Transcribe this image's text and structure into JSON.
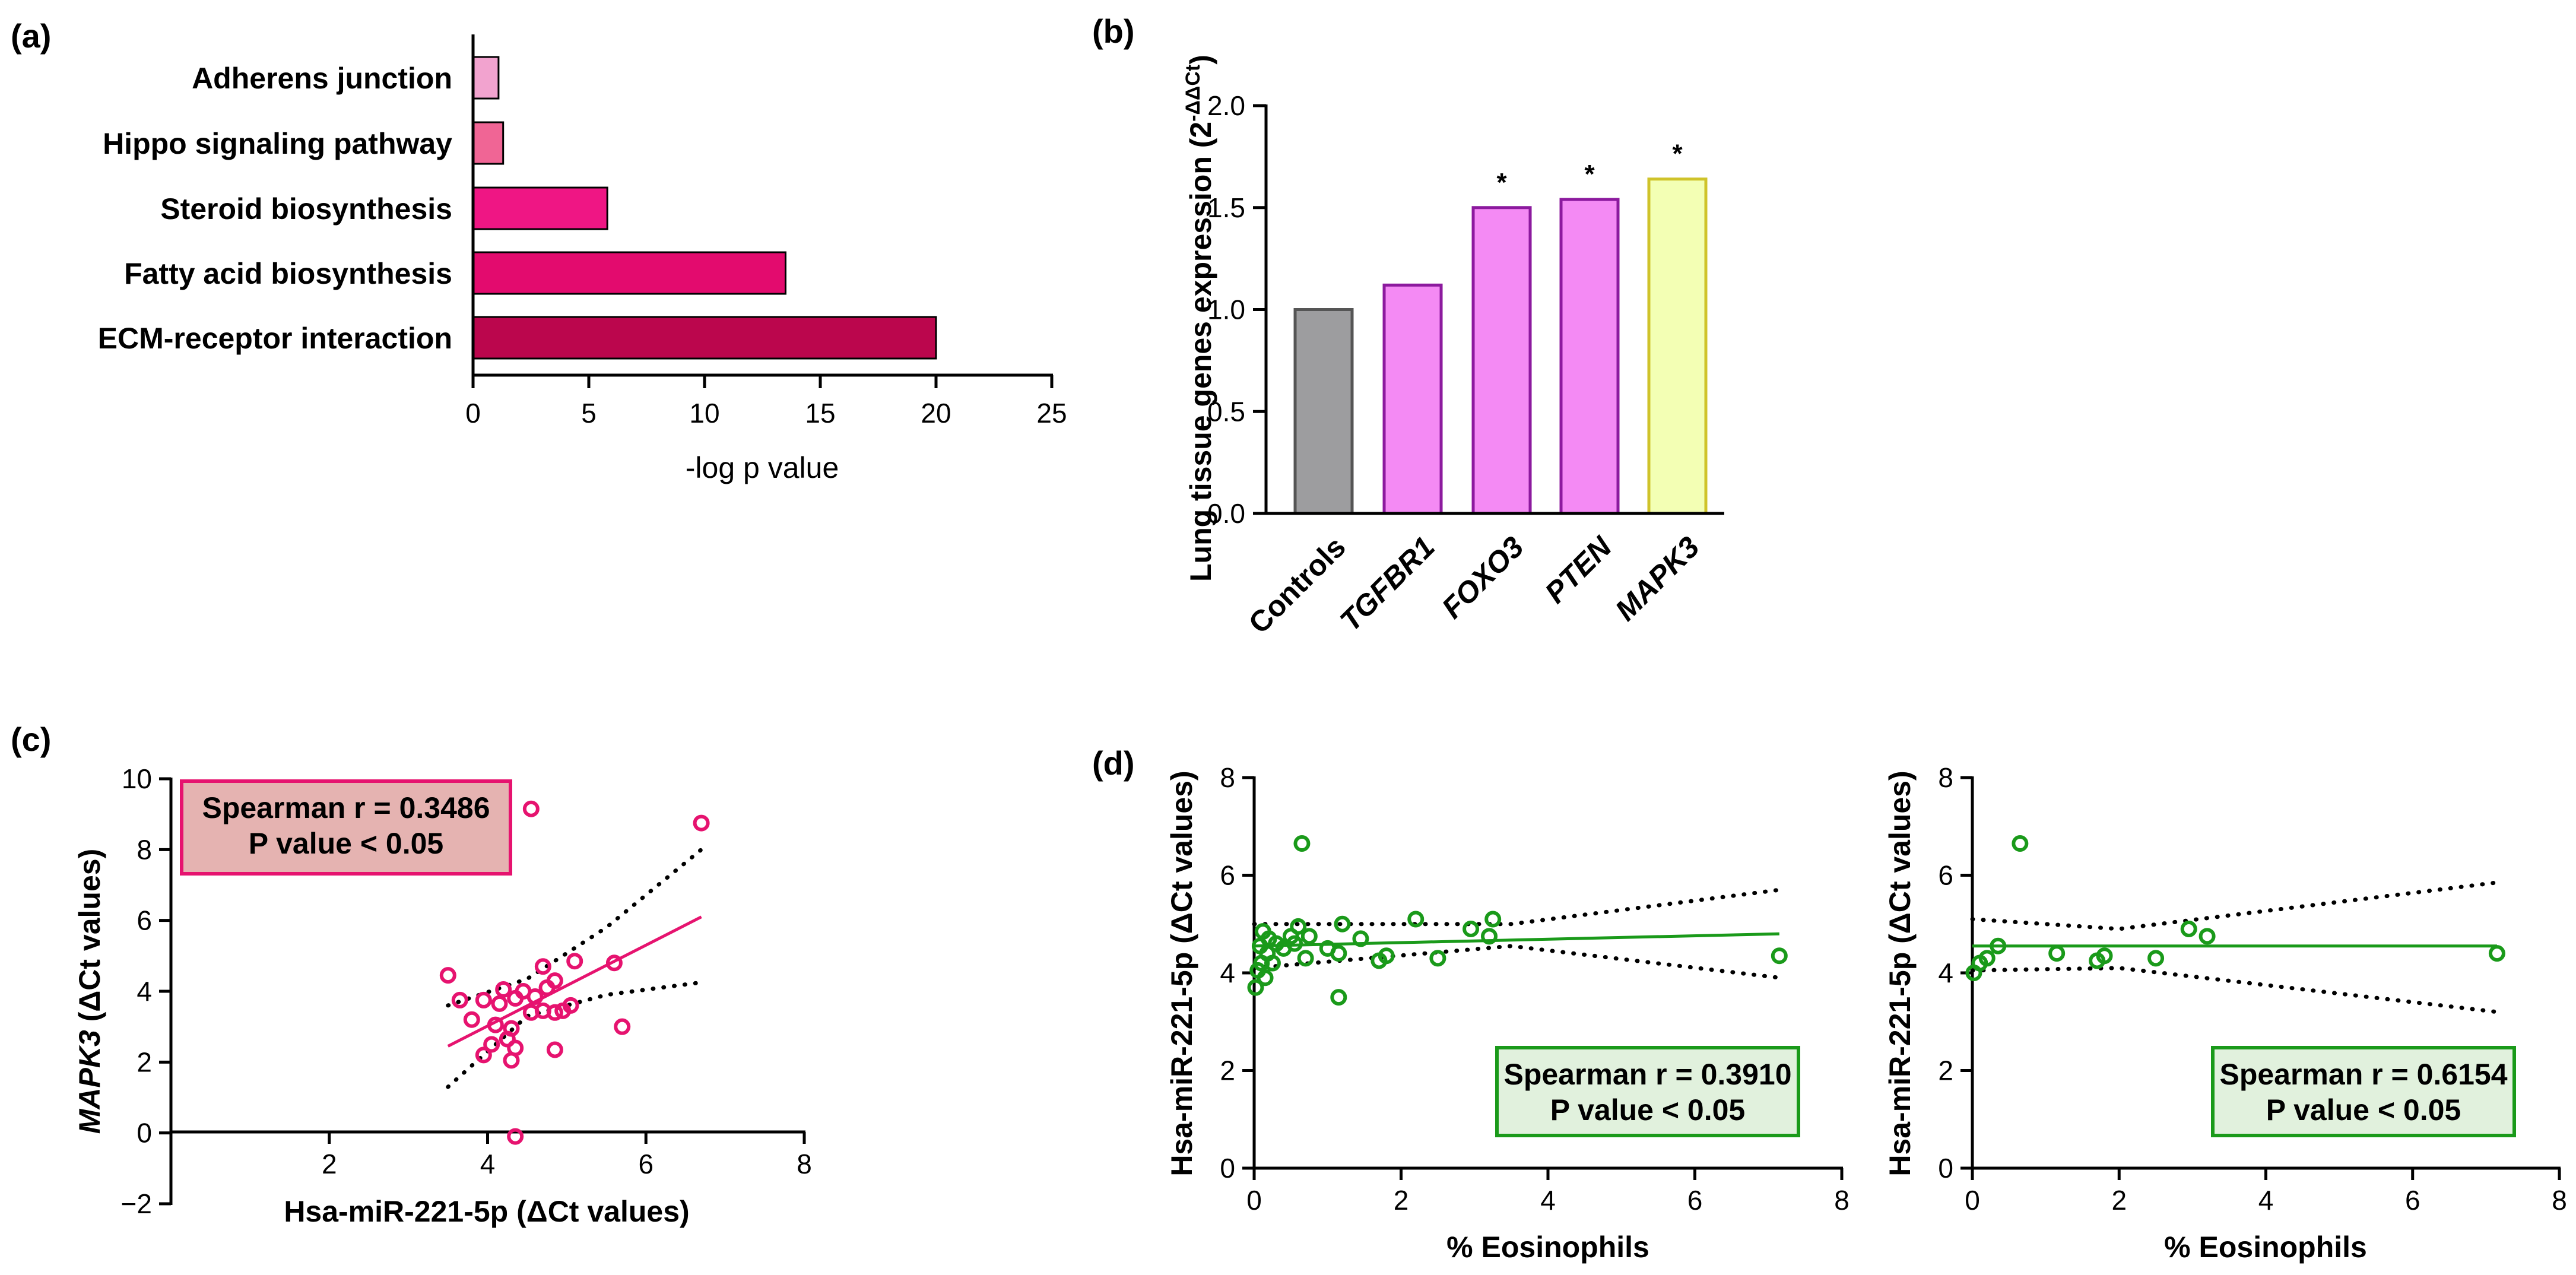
{
  "chart_data": [
    {
      "panel": "(a)",
      "type": "bar",
      "orientation": "horizontal",
      "categories": [
        "Adherens junction",
        "Hippo signaling pathway",
        "Steroid biosynthesis",
        "Fatty acid biosynthesis",
        "ECM-receptor interaction"
      ],
      "values": [
        1.1,
        1.3,
        5.8,
        13.5,
        20.0
      ],
      "colors": [
        "#f2a3cf",
        "#f06595",
        "#ef1684",
        "#e30b6e",
        "#bb064d"
      ],
      "xlabel": "-log p value",
      "xlim": [
        0,
        25
      ],
      "xticks": [
        0,
        5,
        10,
        15,
        20,
        25
      ]
    },
    {
      "panel": "(b)",
      "type": "bar",
      "categories": [
        "Controls",
        "TGFBR1",
        "FOXO3",
        "PTEN",
        "MAPK3"
      ],
      "values": [
        1.0,
        1.12,
        1.5,
        1.54,
        1.64
      ],
      "significance": [
        "",
        "",
        "*",
        "*",
        "*"
      ],
      "colors": [
        "#9d9d9f",
        "#f48af4",
        "#f48af4",
        "#f48af4",
        "#f3ffb4"
      ],
      "edge_colors": [
        "#555555",
        "#8c1a9e",
        "#8c1a9e",
        "#8c1a9e",
        "#cfc32a"
      ],
      "ylabel": "Lung tissue genes expression (2",
      "ylabel_sup": "-ΔΔCt",
      "ylabel_end": ")",
      "ylim": [
        0,
        2.0
      ],
      "yticks": [
        "0.0",
        "0.5",
        "1.0",
        "1.5",
        "2.0"
      ]
    },
    {
      "panel": "(c)",
      "type": "scatter",
      "xlabel": "Hsa-miR-221-5p (ΔCt values)",
      "ylabel_italic": "MAPK3",
      "ylabel_rest": " (ΔCt values)",
      "xlim": [
        0,
        8
      ],
      "ylim": [
        -2,
        10
      ],
      "xticks": [
        2,
        4,
        6,
        8
      ],
      "yticks": [
        -2,
        0,
        2,
        4,
        6,
        8,
        10
      ],
      "ytick_labels": [
        "−2",
        "0",
        "2",
        "4",
        "6",
        "8",
        "10"
      ],
      "points": [
        [
          3.5,
          4.45
        ],
        [
          3.65,
          3.75
        ],
        [
          3.8,
          3.2
        ],
        [
          3.95,
          3.75
        ],
        [
          3.95,
          2.2
        ],
        [
          4.05,
          2.5
        ],
        [
          4.1,
          3.05
        ],
        [
          4.15,
          3.65
        ],
        [
          4.2,
          4.05
        ],
        [
          4.25,
          2.65
        ],
        [
          4.3,
          2.05
        ],
        [
          4.3,
          2.95
        ],
        [
          4.35,
          2.4
        ],
        [
          4.35,
          3.8
        ],
        [
          4.45,
          4.0
        ],
        [
          4.55,
          3.4
        ],
        [
          4.6,
          3.85
        ],
        [
          4.7,
          4.7
        ],
        [
          4.7,
          3.45
        ],
        [
          4.75,
          4.1
        ],
        [
          4.85,
          4.3
        ],
        [
          4.85,
          3.4
        ],
        [
          4.85,
          2.35
        ],
        [
          4.95,
          3.45
        ],
        [
          5.05,
          3.6
        ],
        [
          5.1,
          4.85
        ],
        [
          5.6,
          4.8
        ],
        [
          5.7,
          3.0
        ],
        [
          4.35,
          -0.1
        ],
        [
          4.55,
          9.15
        ],
        [
          6.7,
          8.75
        ]
      ],
      "fit": {
        "x": [
          3.5,
          6.7
        ],
        "y": [
          2.45,
          6.1
        ]
      },
      "ci_upper": {
        "x": [
          3.5,
          4.5,
          5.5,
          6.7
        ],
        "y": [
          3.6,
          4.35,
          5.8,
          8.0
        ]
      },
      "ci_lower": {
        "x": [
          3.5,
          4.5,
          5.5,
          6.7
        ],
        "y": [
          1.3,
          3.3,
          3.9,
          4.25
        ]
      },
      "annotation": [
        "Spearman r = 0.3486",
        "P value < 0.05"
      ],
      "point_color": "#e6136f",
      "box_fill": "#e5b3b1"
    },
    {
      "panel": "(d)",
      "type": "scatter",
      "xlabel": "% Eosinophils",
      "ylabel": "Hsa-miR-221-5p (ΔCt values)",
      "xlim": [
        0,
        8
      ],
      "ylim": [
        0,
        8
      ],
      "xticks": [
        0,
        2,
        4,
        6,
        8
      ],
      "yticks": [
        0,
        2,
        4,
        6,
        8
      ],
      "points": [
        [
          0.02,
          3.7
        ],
        [
          0.05,
          4.05
        ],
        [
          0.08,
          4.55
        ],
        [
          0.1,
          4.2
        ],
        [
          0.12,
          4.85
        ],
        [
          0.15,
          3.9
        ],
        [
          0.18,
          4.4
        ],
        [
          0.2,
          4.7
        ],
        [
          0.25,
          4.2
        ],
        [
          0.3,
          4.6
        ],
        [
          0.4,
          4.5
        ],
        [
          0.5,
          4.75
        ],
        [
          0.55,
          4.6
        ],
        [
          0.6,
          4.95
        ],
        [
          0.7,
          4.3
        ],
        [
          0.65,
          6.65
        ],
        [
          0.75,
          4.75
        ],
        [
          1.0,
          4.5
        ],
        [
          1.15,
          4.4
        ],
        [
          1.2,
          5.0
        ],
        [
          1.15,
          3.5
        ],
        [
          1.45,
          4.7
        ],
        [
          1.7,
          4.25
        ],
        [
          1.8,
          4.35
        ],
        [
          2.2,
          5.1
        ],
        [
          2.5,
          4.3
        ],
        [
          2.95,
          4.9
        ],
        [
          3.2,
          4.75
        ],
        [
          3.25,
          5.1
        ],
        [
          7.15,
          4.35
        ]
      ],
      "fit": {
        "x": [
          0.0,
          7.15
        ],
        "y": [
          4.55,
          4.8
        ]
      },
      "ci_upper": {
        "x": [
          0.0,
          3.5,
          7.15
        ],
        "y": [
          5.0,
          5.0,
          5.7
        ]
      },
      "ci_lower": {
        "x": [
          0.0,
          3.5,
          7.15
        ],
        "y": [
          4.1,
          4.55,
          3.9
        ]
      },
      "annotation": [
        "Spearman r = 0.3910",
        "P value < 0.05"
      ],
      "point_color": "#1a9a1a",
      "box_fill": "#e1f1dd"
    },
    {
      "panel": "(d) right",
      "type": "scatter",
      "xlabel": "% Eosinophils",
      "ylabel": "Hsa-miR-221-5p (ΔCt values)",
      "xlim": [
        0,
        8
      ],
      "ylim": [
        0,
        8
      ],
      "xticks": [
        0,
        2,
        4,
        6,
        8
      ],
      "yticks": [
        0,
        2,
        4,
        6,
        8
      ],
      "points": [
        [
          0.02,
          4.0
        ],
        [
          0.1,
          4.2
        ],
        [
          0.2,
          4.3
        ],
        [
          0.35,
          4.55
        ],
        [
          0.65,
          6.65
        ],
        [
          1.15,
          4.4
        ],
        [
          1.7,
          4.25
        ],
        [
          1.8,
          4.35
        ],
        [
          2.5,
          4.3
        ],
        [
          2.95,
          4.9
        ],
        [
          3.2,
          4.75
        ],
        [
          7.15,
          4.4
        ]
      ],
      "fit": {
        "x": [
          0.0,
          7.15
        ],
        "y": [
          4.55,
          4.55
        ]
      },
      "ci_upper": {
        "x": [
          0.0,
          2.0,
          7.15
        ],
        "y": [
          5.1,
          4.9,
          5.85
        ]
      },
      "ci_lower": {
        "x": [
          0.0,
          2.0,
          7.15
        ],
        "y": [
          4.05,
          4.1,
          3.2
        ]
      },
      "annotation": [
        "Spearman r = 0.6154",
        "P value < 0.05"
      ],
      "point_color": "#1a9a1a",
      "box_fill": "#e1f1dd"
    }
  ],
  "panel_labels": [
    "(a)",
    "(b)",
    "(c)",
    "(d)"
  ]
}
